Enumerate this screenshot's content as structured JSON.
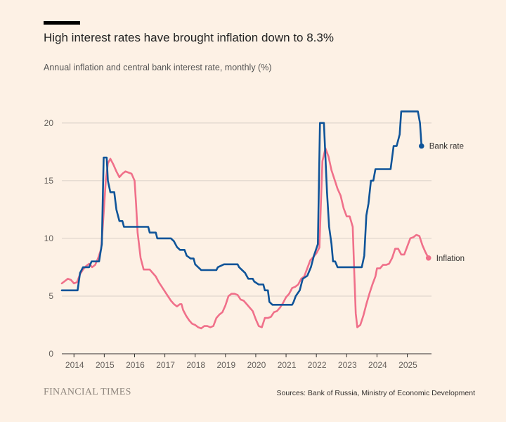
{
  "header": {
    "title": "High interest rates have brought inflation down to 8.3%",
    "subtitle": "Annual inflation and central bank interest rate, monthly (%)"
  },
  "footer": {
    "brand": "FINANCIAL TIMES",
    "source": "Sources: Bank of Russia, Ministry of Economic Development"
  },
  "colors": {
    "background": "#fdf1e5",
    "bank_rate": "#0f5499",
    "inflation": "#f0708a",
    "grid": "#d9cfc6",
    "axis": "#33302e"
  },
  "chart_data": {
    "type": "line",
    "title": "High interest rates have brought inflation down to 8.3%",
    "ylabel": "",
    "xlabel": "",
    "xlim": [
      2013.6,
      2025.8
    ],
    "ylim": [
      0,
      22
    ],
    "grid": true,
    "y_ticks": [
      0,
      5,
      10,
      15,
      20
    ],
    "x_ticks": [
      "2014",
      "2015",
      "2016",
      "2017",
      "2018",
      "2019",
      "2020",
      "2021",
      "2022",
      "2023",
      "2024",
      "2025"
    ],
    "series": [
      {
        "name": "Bank rate",
        "label": "Bank rate",
        "color": "#0f5499",
        "points": [
          [
            2013.6,
            5.5
          ],
          [
            2014.0,
            5.5
          ],
          [
            2014.12,
            5.5
          ],
          [
            2014.2,
            7.0
          ],
          [
            2014.3,
            7.5
          ],
          [
            2014.5,
            7.5
          ],
          [
            2014.58,
            8.0
          ],
          [
            2014.83,
            8.0
          ],
          [
            2014.92,
            9.5
          ],
          [
            2014.98,
            17.0
          ],
          [
            2015.08,
            17.0
          ],
          [
            2015.12,
            15.0
          ],
          [
            2015.2,
            14.0
          ],
          [
            2015.33,
            14.0
          ],
          [
            2015.4,
            12.5
          ],
          [
            2015.5,
            11.5
          ],
          [
            2015.6,
            11.5
          ],
          [
            2015.65,
            11.0
          ],
          [
            2016.45,
            11.0
          ],
          [
            2016.5,
            10.5
          ],
          [
            2016.7,
            10.5
          ],
          [
            2016.75,
            10.0
          ],
          [
            2017.2,
            10.0
          ],
          [
            2017.3,
            9.75
          ],
          [
            2017.4,
            9.25
          ],
          [
            2017.5,
            9.0
          ],
          [
            2017.65,
            9.0
          ],
          [
            2017.72,
            8.5
          ],
          [
            2017.85,
            8.25
          ],
          [
            2017.95,
            8.25
          ],
          [
            2018.0,
            7.75
          ],
          [
            2018.1,
            7.5
          ],
          [
            2018.2,
            7.25
          ],
          [
            2018.7,
            7.25
          ],
          [
            2018.75,
            7.5
          ],
          [
            2018.95,
            7.75
          ],
          [
            2019.4,
            7.75
          ],
          [
            2019.45,
            7.5
          ],
          [
            2019.55,
            7.25
          ],
          [
            2019.65,
            7.0
          ],
          [
            2019.75,
            6.5
          ],
          [
            2019.9,
            6.5
          ],
          [
            2019.95,
            6.25
          ],
          [
            2020.1,
            6.0
          ],
          [
            2020.25,
            6.0
          ],
          [
            2020.3,
            5.5
          ],
          [
            2020.4,
            5.5
          ],
          [
            2020.45,
            4.5
          ],
          [
            2020.55,
            4.25
          ],
          [
            2021.2,
            4.25
          ],
          [
            2021.25,
            4.5
          ],
          [
            2021.32,
            5.0
          ],
          [
            2021.45,
            5.5
          ],
          [
            2021.55,
            6.5
          ],
          [
            2021.7,
            6.75
          ],
          [
            2021.82,
            7.5
          ],
          [
            2021.92,
            8.5
          ],
          [
            2022.05,
            9.5
          ],
          [
            2022.12,
            20.0
          ],
          [
            2022.25,
            20.0
          ],
          [
            2022.3,
            17.0
          ],
          [
            2022.35,
            14.0
          ],
          [
            2022.42,
            11.0
          ],
          [
            2022.5,
            9.5
          ],
          [
            2022.55,
            8.0
          ],
          [
            2022.62,
            8.0
          ],
          [
            2022.7,
            7.5
          ],
          [
            2023.5,
            7.5
          ],
          [
            2023.58,
            8.5
          ],
          [
            2023.65,
            12.0
          ],
          [
            2023.72,
            13.0
          ],
          [
            2023.8,
            15.0
          ],
          [
            2023.88,
            15.0
          ],
          [
            2023.95,
            16.0
          ],
          [
            2024.45,
            16.0
          ],
          [
            2024.55,
            18.0
          ],
          [
            2024.65,
            18.0
          ],
          [
            2024.75,
            19.0
          ],
          [
            2024.8,
            21.0
          ],
          [
            2025.35,
            21.0
          ],
          [
            2025.42,
            20.0
          ],
          [
            2025.47,
            18.0
          ]
        ]
      },
      {
        "name": "Inflation",
        "label": "Inflation",
        "color": "#f0708a",
        "points": [
          [
            2013.6,
            6.1
          ],
          [
            2013.7,
            6.3
          ],
          [
            2013.8,
            6.5
          ],
          [
            2013.9,
            6.4
          ],
          [
            2014.0,
            6.1
          ],
          [
            2014.1,
            6.2
          ],
          [
            2014.2,
            6.9
          ],
          [
            2014.3,
            7.3
          ],
          [
            2014.4,
            7.6
          ],
          [
            2014.5,
            7.8
          ],
          [
            2014.6,
            7.5
          ],
          [
            2014.7,
            7.7
          ],
          [
            2014.8,
            8.3
          ],
          [
            2014.9,
            9.1
          ],
          [
            2014.95,
            11.0
          ],
          [
            2015.0,
            13.0
          ],
          [
            2015.05,
            15.0
          ],
          [
            2015.12,
            16.5
          ],
          [
            2015.2,
            16.9
          ],
          [
            2015.3,
            16.4
          ],
          [
            2015.4,
            15.8
          ],
          [
            2015.5,
            15.3
          ],
          [
            2015.6,
            15.6
          ],
          [
            2015.7,
            15.8
          ],
          [
            2015.8,
            15.7
          ],
          [
            2015.9,
            15.6
          ],
          [
            2016.0,
            15.0
          ],
          [
            2016.05,
            13.0
          ],
          [
            2016.1,
            10.5
          ],
          [
            2016.2,
            8.3
          ],
          [
            2016.3,
            7.3
          ],
          [
            2016.4,
            7.3
          ],
          [
            2016.5,
            7.3
          ],
          [
            2016.6,
            7.0
          ],
          [
            2016.7,
            6.7
          ],
          [
            2016.8,
            6.2
          ],
          [
            2016.9,
            5.8
          ],
          [
            2017.0,
            5.4
          ],
          [
            2017.1,
            5.0
          ],
          [
            2017.2,
            4.6
          ],
          [
            2017.3,
            4.3
          ],
          [
            2017.4,
            4.1
          ],
          [
            2017.5,
            4.3
          ],
          [
            2017.55,
            4.3
          ],
          [
            2017.6,
            3.8
          ],
          [
            2017.7,
            3.3
          ],
          [
            2017.8,
            2.9
          ],
          [
            2017.9,
            2.6
          ],
          [
            2018.0,
            2.5
          ],
          [
            2018.1,
            2.3
          ],
          [
            2018.2,
            2.2
          ],
          [
            2018.3,
            2.4
          ],
          [
            2018.4,
            2.4
          ],
          [
            2018.5,
            2.3
          ],
          [
            2018.6,
            2.4
          ],
          [
            2018.7,
            3.1
          ],
          [
            2018.8,
            3.4
          ],
          [
            2018.9,
            3.6
          ],
          [
            2019.0,
            4.2
          ],
          [
            2019.1,
            5.0
          ],
          [
            2019.2,
            5.2
          ],
          [
            2019.3,
            5.2
          ],
          [
            2019.4,
            5.1
          ],
          [
            2019.5,
            4.7
          ],
          [
            2019.6,
            4.6
          ],
          [
            2019.7,
            4.3
          ],
          [
            2019.8,
            4.0
          ],
          [
            2019.9,
            3.7
          ],
          [
            2020.0,
            3.0
          ],
          [
            2020.1,
            2.4
          ],
          [
            2020.2,
            2.3
          ],
          [
            2020.3,
            3.1
          ],
          [
            2020.4,
            3.1
          ],
          [
            2020.5,
            3.2
          ],
          [
            2020.6,
            3.6
          ],
          [
            2020.7,
            3.7
          ],
          [
            2020.8,
            4.0
          ],
          [
            2020.9,
            4.4
          ],
          [
            2021.0,
            4.9
          ],
          [
            2021.1,
            5.2
          ],
          [
            2021.2,
            5.7
          ],
          [
            2021.3,
            5.8
          ],
          [
            2021.4,
            6.0
          ],
          [
            2021.5,
            6.5
          ],
          [
            2021.6,
            6.7
          ],
          [
            2021.7,
            7.4
          ],
          [
            2021.8,
            8.1
          ],
          [
            2021.9,
            8.4
          ],
          [
            2022.0,
            8.7
          ],
          [
            2022.1,
            9.2
          ],
          [
            2022.15,
            13.0
          ],
          [
            2022.2,
            16.7
          ],
          [
            2022.3,
            17.8
          ],
          [
            2022.4,
            17.1
          ],
          [
            2022.5,
            15.9
          ],
          [
            2022.6,
            15.1
          ],
          [
            2022.7,
            14.3
          ],
          [
            2022.8,
            13.7
          ],
          [
            2022.9,
            12.6
          ],
          [
            2023.0,
            11.9
          ],
          [
            2023.1,
            11.9
          ],
          [
            2023.2,
            11.0
          ],
          [
            2023.25,
            7.0
          ],
          [
            2023.3,
            3.5
          ],
          [
            2023.35,
            2.3
          ],
          [
            2023.45,
            2.5
          ],
          [
            2023.55,
            3.3
          ],
          [
            2023.65,
            4.3
          ],
          [
            2023.75,
            5.2
          ],
          [
            2023.85,
            6.0
          ],
          [
            2023.95,
            6.7
          ],
          [
            2024.0,
            7.4
          ],
          [
            2024.1,
            7.4
          ],
          [
            2024.2,
            7.7
          ],
          [
            2024.3,
            7.7
          ],
          [
            2024.4,
            7.8
          ],
          [
            2024.5,
            8.3
          ],
          [
            2024.6,
            9.1
          ],
          [
            2024.7,
            9.1
          ],
          [
            2024.8,
            8.6
          ],
          [
            2024.9,
            8.6
          ],
          [
            2025.0,
            9.3
          ],
          [
            2025.1,
            10.0
          ],
          [
            2025.2,
            10.1
          ],
          [
            2025.3,
            10.3
          ],
          [
            2025.4,
            10.2
          ],
          [
            2025.5,
            9.4
          ],
          [
            2025.6,
            8.8
          ],
          [
            2025.7,
            8.3
          ]
        ]
      }
    ]
  }
}
